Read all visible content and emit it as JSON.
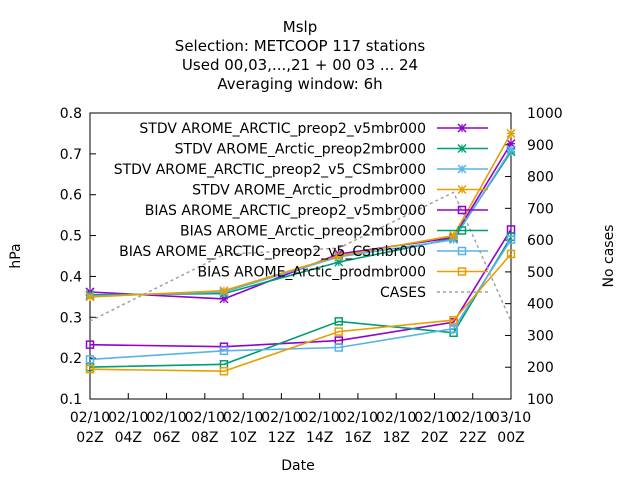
{
  "title_lines": [
    "Mslp",
    "Selection: METCOOP    117 stations",
    "Used  00,03,...,21  + 00 03 ... 24",
    "Averaging window:  6h"
  ],
  "chart_data": {
    "type": "line",
    "xlabel": "Date",
    "ylabel": "hPa",
    "y2label": "No cases",
    "ylim": [
      0.1,
      0.8
    ],
    "y2lim": [
      100,
      1000
    ],
    "yticks": [
      "0.1",
      "0.2",
      "0.3",
      "0.4",
      "0.5",
      "0.6",
      "0.7",
      "0.8"
    ],
    "y2ticks": [
      "100",
      "200",
      "300",
      "400",
      "500",
      "600",
      "700",
      "800",
      "900",
      "1000"
    ],
    "xlim": [
      2,
      24
    ],
    "xticks": [
      {
        "x": 2,
        "l1": "02/10",
        "l2": "02Z"
      },
      {
        "x": 4,
        "l1": "02/10",
        "l2": "04Z"
      },
      {
        "x": 6,
        "l1": "02/10",
        "l2": "06Z"
      },
      {
        "x": 8,
        "l1": "02/10",
        "l2": "08Z"
      },
      {
        "x": 10,
        "l1": "02/10",
        "l2": "10Z"
      },
      {
        "x": 12,
        "l1": "02/10",
        "l2": "12Z"
      },
      {
        "x": 14,
        "l1": "02/10",
        "l2": "14Z"
      },
      {
        "x": 16,
        "l1": "02/10",
        "l2": "16Z"
      },
      {
        "x": 18,
        "l1": "02/10",
        "l2": "18Z"
      },
      {
        "x": 20,
        "l1": "02/10",
        "l2": "20Z"
      },
      {
        "x": 22,
        "l1": "02/10",
        "l2": "22Z"
      },
      {
        "x": 24,
        "l1": "03/10",
        "l2": "00Z"
      }
    ],
    "legend_position": "top-right",
    "series": [
      {
        "name": "STDV AROME_ARCTIC_preop2_v5mbr000",
        "color": "#9400d3",
        "marker": "x",
        "dash": "",
        "axis": "y",
        "x": [
          2,
          9,
          15,
          21,
          24
        ],
        "y": [
          0.362,
          0.345,
          0.455,
          0.495,
          0.725
        ]
      },
      {
        "name": "STDV AROME_Arctic_preop2mbr000",
        "color": "#009e73",
        "marker": "x",
        "dash": "",
        "axis": "y",
        "x": [
          2,
          9,
          15,
          21,
          24
        ],
        "y": [
          0.355,
          0.358,
          0.435,
          0.493,
          0.705
        ]
      },
      {
        "name": "STDV AROME_ARCTIC_preop2_v5_CSmbr000",
        "color": "#56b4e9",
        "marker": "x",
        "dash": "",
        "axis": "y",
        "x": [
          2,
          9,
          15,
          21,
          24
        ],
        "y": [
          0.352,
          0.362,
          0.448,
          0.49,
          0.71
        ]
      },
      {
        "name": "STDV AROME_Arctic_prodmbr000",
        "color": "#e69f00",
        "marker": "x",
        "dash": "",
        "axis": "y",
        "x": [
          2,
          9,
          15,
          21,
          24
        ],
        "y": [
          0.35,
          0.365,
          0.45,
          0.5,
          0.75
        ]
      },
      {
        "name": "BIAS AROME_ARCTIC_preop2_v5mbr000",
        "color": "#9400d3",
        "marker": "square",
        "dash": "",
        "axis": "y",
        "x": [
          2,
          9,
          15,
          21,
          24
        ],
        "y": [
          0.233,
          0.228,
          0.243,
          0.288,
          0.515
        ]
      },
      {
        "name": "BIAS AROME_Arctic_preop2mbr000",
        "color": "#009e73",
        "marker": "square",
        "dash": "",
        "axis": "y",
        "x": [
          2,
          9,
          15,
          21,
          24
        ],
        "y": [
          0.178,
          0.185,
          0.29,
          0.262,
          0.497
        ]
      },
      {
        "name": "BIAS AROME_ARCTIC_preop2_v5_CSmbr000",
        "color": "#56b4e9",
        "marker": "square",
        "dash": "",
        "axis": "y",
        "x": [
          2,
          9,
          15,
          21,
          24
        ],
        "y": [
          0.197,
          0.218,
          0.226,
          0.272,
          0.49
        ]
      },
      {
        "name": "BIAS AROME_Arctic_prodmbr000",
        "color": "#e69f00",
        "marker": "square",
        "dash": "",
        "axis": "y",
        "x": [
          2,
          9,
          15,
          21,
          24
        ],
        "y": [
          0.173,
          0.168,
          0.265,
          0.293,
          0.455
        ]
      },
      {
        "name": "CASES",
        "color": "#a0a0a0",
        "marker": "none",
        "dash": "3,3",
        "axis": "y2",
        "x": [
          2,
          9,
          15,
          21,
          24
        ],
        "y": [
          345,
          555,
          575,
          750,
          345
        ]
      }
    ]
  }
}
